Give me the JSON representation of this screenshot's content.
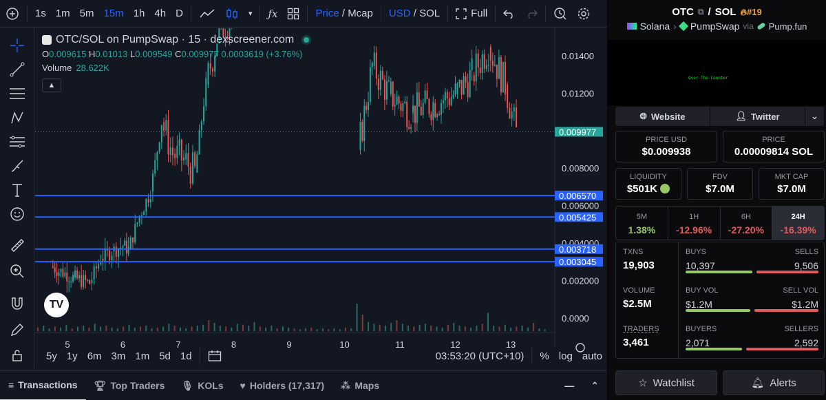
{
  "toolbar": {
    "intervals": [
      "1s",
      "1m",
      "5m",
      "15m",
      "1h",
      "4h",
      "D"
    ],
    "active_interval": "15m",
    "price_label": "Price",
    "mcap_label": "Mcap",
    "usd_label": "USD",
    "sol_label": "SOL",
    "full_label": "Full"
  },
  "legend": {
    "title": "OTC/SOL on PumpSwap · 15 · dexscreener.com",
    "o_k": "O",
    "o": "0.009615",
    "h_k": "H",
    "h": "0.01013",
    "l_k": "L",
    "l": "0.009549",
    "c_k": "C",
    "c": "0.009977",
    "change": "0.0003619 (+3.76%)",
    "volume_label": "Volume",
    "volume": "28.622K"
  },
  "chart_data": {
    "type": "line",
    "title": "",
    "xlabel": "",
    "ylabel": "",
    "x_ticks": [
      "5",
      "6",
      "7",
      "8",
      "9",
      "10",
      "11",
      "12",
      "13"
    ],
    "y_ticks": [
      "0.0000",
      "0.002000",
      "0.004000",
      "0.006000",
      "0.008000",
      "0.01200",
      "0.01400"
    ],
    "y_range": [
      0,
      0.0155
    ],
    "current_price": "0.009977",
    "horizontal_lines": [
      {
        "value": 0.00657,
        "label": "0.006570"
      },
      {
        "value": 0.005425,
        "label": "0.005425"
      },
      {
        "value": 0.003718,
        "label": "0.003718"
      },
      {
        "value": 0.003045,
        "label": "0.003045"
      }
    ],
    "series": [
      {
        "x": [
          4.7,
          5.1,
          5.4,
          5.6,
          5.8,
          6.0,
          6.1,
          6.3,
          6.5,
          6.7,
          6.9,
          7.1,
          7.3,
          7.5,
          7.7,
          8.0,
          10.25,
          10.5,
          10.8,
          11.2,
          11.6,
          12.0,
          12.3,
          12.6,
          12.9,
          13.1
        ],
        "y": [
          0.0028,
          0.0022,
          0.0019,
          0.0032,
          0.0036,
          0.0039,
          0.0037,
          0.0055,
          0.0068,
          0.0105,
          0.0088,
          0.0085,
          0.0078,
          0.0125,
          0.015,
          0.0165,
          0.009,
          0.0135,
          0.012,
          0.011,
          0.0115,
          0.012,
          0.013,
          0.0145,
          0.0125,
          0.0099
        ]
      }
    ]
  },
  "volume": {
    "bars": [
      4,
      6,
      3,
      5,
      4,
      7,
      3,
      5,
      6,
      4,
      8,
      5,
      6,
      4,
      3,
      5,
      7,
      4,
      5,
      6,
      3,
      4,
      5,
      8,
      6,
      4,
      3,
      5,
      6,
      7,
      12,
      9,
      6,
      5,
      4,
      8,
      7,
      6,
      10,
      5,
      4,
      6,
      3,
      5,
      4,
      3,
      2,
      3,
      4,
      2,
      3,
      2,
      3,
      2,
      4,
      3,
      30,
      18,
      10,
      8,
      7,
      6,
      9,
      12,
      8,
      6,
      5,
      7,
      8,
      6,
      5,
      4,
      7,
      9,
      6,
      5,
      4,
      6,
      8,
      20,
      6,
      5,
      7,
      4,
      5,
      6,
      4,
      9,
      3,
      2
    ]
  },
  "bottom_toolbar": {
    "ranges": [
      "5y",
      "1y",
      "6m",
      "3m",
      "1m",
      "5d",
      "1d"
    ],
    "time": "03:53:20 (UTC+10)",
    "pct": "%",
    "log": "log",
    "auto": "auto"
  },
  "tabs": [
    {
      "label": "Transactions"
    },
    {
      "label": "Top Traders"
    },
    {
      "label": "KOLs"
    },
    {
      "label": "Holders (17,317)"
    },
    {
      "label": "Maps"
    }
  ],
  "pair": {
    "base": "OTC",
    "sep": "/",
    "quote": "SOL",
    "rank": "#19",
    "chain": "Solana",
    "dex": "PumpSwap",
    "via": "via",
    "launchpad": "Pump.fun",
    "banner_text": "Over-The-Counter"
  },
  "links": {
    "website": "Website",
    "twitter": "Twitter"
  },
  "prices": {
    "usd_label": "PRICE USD",
    "usd": "$0.009938",
    "sol_label": "PRICE",
    "sol": "0.00009814 SOL"
  },
  "metrics": {
    "liq_label": "LIQUIDITY",
    "liq": "$501K",
    "fdv_label": "FDV",
    "fdv": "$7.0M",
    "mcap_label": "MKT CAP",
    "mcap": "$7.0M"
  },
  "changes": [
    {
      "label": "5M",
      "value": "1.38%",
      "color": "#97c765"
    },
    {
      "label": "1H",
      "value": "-12.96%",
      "color": "#e05c5c"
    },
    {
      "label": "6H",
      "value": "-27.20%",
      "color": "#e05c5c"
    },
    {
      "label": "24H",
      "value": "-16.39%",
      "color": "#e05c5c"
    }
  ],
  "stats": {
    "txns_label": "TXNS",
    "txns": "19,903",
    "buys_label": "BUYS",
    "buys": "10,397",
    "sells_label": "SELLS",
    "sells": "9,506",
    "buy_frac": 0.52,
    "vol_label": "VOLUME",
    "vol": "$2.5M",
    "buyvol_label": "BUY VOL",
    "buyvol": "$1.2M",
    "sellvol_label": "SELL VOL",
    "sellvol": "$1.2M",
    "buyvol_frac": 0.5,
    "traders_label": "TRADERS",
    "traders": "3,461",
    "buyers_label": "BUYERS",
    "buyers": "2,071",
    "sellers_label": "SELLERS",
    "sellers": "2,592",
    "buyer_frac": 0.44
  },
  "actions": {
    "watchlist": "Watchlist",
    "alerts": "Alerts"
  }
}
